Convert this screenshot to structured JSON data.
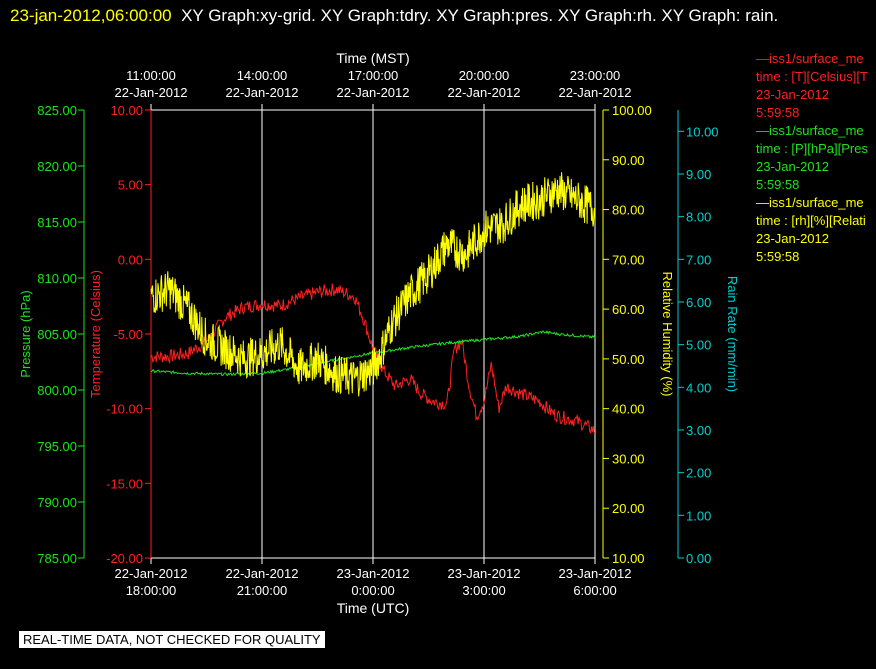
{
  "header": {
    "timestamp": "23-jan-2012,06:00:00",
    "graphs": "XY Graph:xy-grid.  XY Graph:tdry.  XY Graph:pres.  XY Graph:rh.  XY Graph: rain."
  },
  "legend": [
    {
      "line1": "—iss1/surface_me",
      "line2": "time : [T][Celsius][T",
      "line3": "23-Jan-2012",
      "line4": "5:59:58",
      "color": "#ff2020"
    },
    {
      "line1": "—iss1/surface_me",
      "line2": "time : [P][hPa][Pres",
      "line3": "23-Jan-2012",
      "line4": "5:59:58",
      "color": "#20e020"
    },
    {
      "line1": "—iss1/surface_me",
      "line2": "time : [rh][%][Relati",
      "line3": "23-Jan-2012",
      "line4": "5:59:58",
      "color": "#ffff00"
    }
  ],
  "footer": {
    "quality_note": "REAL-TIME DATA, NOT CHECKED FOR QUALITY"
  },
  "chart_data": {
    "type": "line",
    "title": "",
    "colors": {
      "temperature": "#ff2020",
      "pressure": "#20e020",
      "humidity": "#ffff00",
      "rain": "#00d0d0",
      "grid": "#ffffff",
      "text": "#ffffff"
    },
    "top_axis": {
      "label": "Time (MST)",
      "ticks": [
        {
          "time": "11:00:00",
          "date": "22-Jan-2012",
          "utc_hours": 18
        },
        {
          "time": "14:00:00",
          "date": "22-Jan-2012",
          "utc_hours": 21
        },
        {
          "time": "17:00:00",
          "date": "22-Jan-2012",
          "utc_hours": 24
        },
        {
          "time": "20:00:00",
          "date": "22-Jan-2012",
          "utc_hours": 27
        },
        {
          "time": "23:00:00",
          "date": "22-Jan-2012",
          "utc_hours": 30
        }
      ]
    },
    "bottom_axis": {
      "label": "Time (UTC)",
      "ticks": [
        {
          "date": "22-Jan-2012",
          "time": "18:00:00",
          "utc_hours": 18
        },
        {
          "date": "22-Jan-2012",
          "time": "21:00:00",
          "utc_hours": 21
        },
        {
          "date": "23-Jan-2012",
          "time": "0:00:00",
          "utc_hours": 24
        },
        {
          "date": "23-Jan-2012",
          "time": "3:00:00",
          "utc_hours": 27
        },
        {
          "date": "23-Jan-2012",
          "time": "6:00:00",
          "utc_hours": 30
        }
      ],
      "range_utc_hours": [
        18,
        30
      ]
    },
    "y_axes": {
      "pressure": {
        "label": "Pressure (hPa)",
        "range": [
          785,
          825
        ],
        "ticks": [
          "825.00",
          "820.00",
          "815.00",
          "810.00",
          "805.00",
          "800.00",
          "795.00",
          "790.00",
          "785.00"
        ]
      },
      "temperature": {
        "label": "Temperature (Celsius)",
        "range": [
          -20,
          10
        ],
        "ticks": [
          "10.00",
          "5.00",
          "0.00",
          "-5.00",
          "-10.00",
          "-15.00",
          "-20.00"
        ]
      },
      "humidity": {
        "label": "Relative Humidity (%)",
        "range": [
          10,
          100
        ],
        "ticks": [
          "100.00",
          "90.00",
          "80.00",
          "70.00",
          "60.00",
          "50.00",
          "40.00",
          "30.00",
          "20.00",
          "10.00"
        ]
      },
      "rain": {
        "label": "Rain Rate (mm/min)",
        "range": [
          0,
          10.5
        ],
        "ticks": [
          "10.00",
          "9.00",
          "8.00",
          "7.00",
          "6.00",
          "5.00",
          "4.00",
          "3.00",
          "2.00",
          "1.00",
          "0.00"
        ]
      }
    },
    "series": [
      {
        "name": "iss1/surface_me T",
        "axis": "temperature",
        "color": "#ff2020",
        "points": [
          [
            18,
            -6.5
          ],
          [
            18.5,
            -6.5
          ],
          [
            19,
            -6.3
          ],
          [
            19.5,
            -5.5
          ],
          [
            20,
            -3.9
          ],
          [
            20.5,
            -3.2
          ],
          [
            21,
            -3.0
          ],
          [
            21.5,
            -3.1
          ],
          [
            22,
            -2.6
          ],
          [
            22.5,
            -2.2
          ],
          [
            23,
            -2.0
          ],
          [
            23.5,
            -2.5
          ],
          [
            23.75,
            -4.0
          ],
          [
            24,
            -6.0
          ],
          [
            24.3,
            -7.5
          ],
          [
            24.6,
            -8.5
          ],
          [
            25,
            -8.0
          ],
          [
            25.3,
            -9.0
          ],
          [
            25.6,
            -9.5
          ],
          [
            26,
            -9.7
          ],
          [
            26.2,
            -6.0
          ],
          [
            26.4,
            -5.5
          ],
          [
            26.6,
            -8.5
          ],
          [
            26.8,
            -10.5
          ],
          [
            27,
            -9.5
          ],
          [
            27.2,
            -7.0
          ],
          [
            27.4,
            -10.0
          ],
          [
            27.6,
            -8.5
          ],
          [
            28,
            -9.0
          ],
          [
            28.5,
            -9.5
          ],
          [
            28.8,
            -10.2
          ],
          [
            29,
            -10.5
          ],
          [
            29.5,
            -10.8
          ],
          [
            29.8,
            -11.2
          ],
          [
            30,
            -11.5
          ]
        ]
      },
      {
        "name": "iss1/surface_me P",
        "axis": "pressure",
        "color": "#20e020",
        "points": [
          [
            18,
            801.7
          ],
          [
            19,
            801.5
          ],
          [
            20,
            801.4
          ],
          [
            21,
            801.5
          ],
          [
            22,
            802.0
          ],
          [
            23,
            802.7
          ],
          [
            24,
            803.3
          ],
          [
            25,
            803.8
          ],
          [
            26,
            804.2
          ],
          [
            27,
            804.5
          ],
          [
            28,
            804.8
          ],
          [
            28.6,
            805.2
          ],
          [
            29,
            805.0
          ],
          [
            30,
            804.7
          ]
        ]
      },
      {
        "name": "iss1/surface_me rh",
        "axis": "humidity",
        "color": "#ffff00",
        "points": [
          [
            18,
            62.5
          ],
          [
            18.5,
            64
          ],
          [
            19,
            60
          ],
          [
            19.5,
            54
          ],
          [
            20,
            52
          ],
          [
            20.5,
            50
          ],
          [
            21,
            51
          ],
          [
            21.5,
            53
          ],
          [
            22,
            48
          ],
          [
            22.5,
            50
          ],
          [
            23,
            47
          ],
          [
            23.5,
            46
          ],
          [
            24,
            48
          ],
          [
            24.2,
            51
          ],
          [
            24.5,
            57
          ],
          [
            25,
            63
          ],
          [
            25.5,
            67
          ],
          [
            26,
            73
          ],
          [
            26.5,
            71
          ],
          [
            27,
            76
          ],
          [
            27.5,
            77
          ],
          [
            28,
            81
          ],
          [
            28.5,
            82
          ],
          [
            29,
            84
          ],
          [
            29.5,
            82
          ],
          [
            30,
            80
          ]
        ]
      },
      {
        "name": "rain",
        "axis": "rain",
        "color": "#00d0d0",
        "points": []
      }
    ]
  }
}
